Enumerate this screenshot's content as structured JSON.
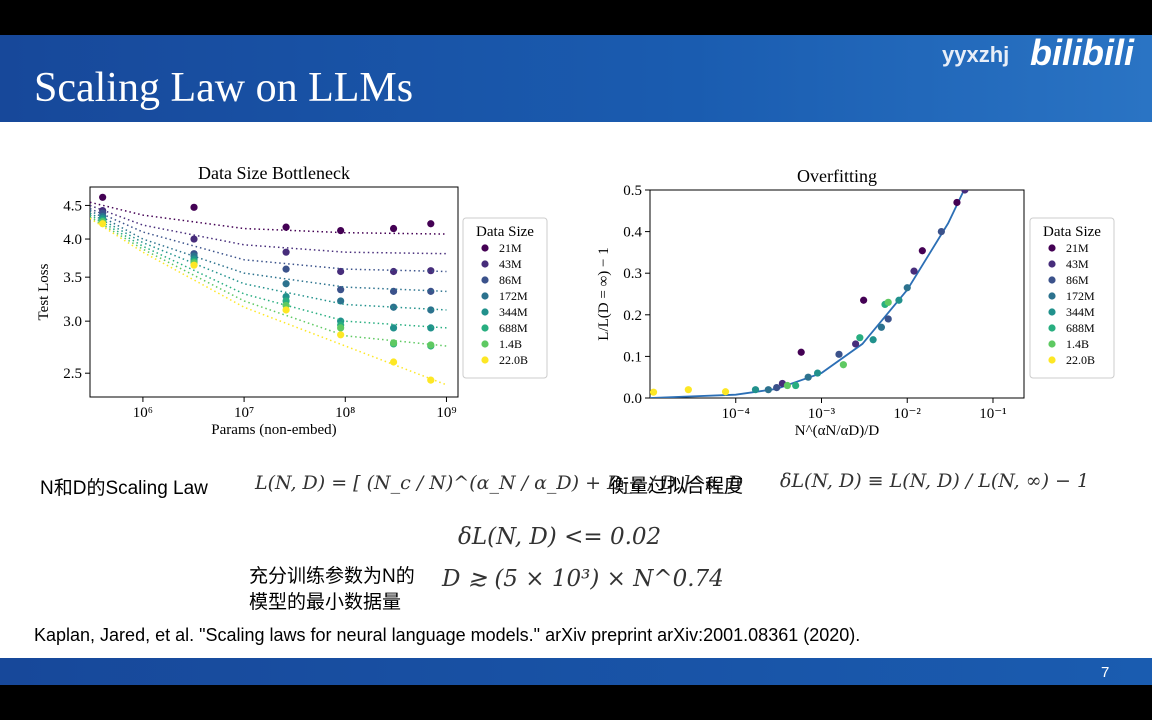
{
  "header": {
    "title": "Scaling Law on LLMs",
    "watermark": "yyxzhj",
    "brand": "bilibili"
  },
  "chart_data": [
    {
      "type": "scatter",
      "title": "Data Size Bottleneck",
      "x_label": "Params (non-embed)",
      "y_label": "Test Loss",
      "xscale": "log",
      "yscale": "log",
      "xlim": [
        300000,
        1300000000
      ],
      "ylim": [
        2.3,
        4.8
      ],
      "xticks": [
        {
          "value": 1000000,
          "label": "10⁶"
        },
        {
          "value": 10000000,
          "label": "10⁷"
        },
        {
          "value": 100000000,
          "label": "10⁸"
        },
        {
          "value": 1000000000,
          "label": "10⁹"
        }
      ],
      "yticks": [
        2.5,
        {
          "value": 3,
          "label": "3.0"
        },
        3.5,
        {
          "value": 4,
          "label": "4.0"
        },
        4.5
      ],
      "legend": "outside right",
      "legend_title": "Data Size",
      "x": [
        400000,
        3200000,
        26000000,
        90000000,
        300000000,
        700000000
      ],
      "fit_x": [
        300000,
        1000000,
        10000000,
        100000000,
        1000000000
      ],
      "series": [
        {
          "name": "21M",
          "color": "#440154",
          "values": [
            4.63,
            4.47,
            4.17,
            4.12,
            4.15,
            4.22
          ],
          "fit": [
            4.55,
            4.35,
            4.15,
            4.09,
            4.07
          ]
        },
        {
          "name": "43M",
          "color": "#472d7b",
          "values": [
            4.42,
            4.0,
            3.82,
            3.57,
            3.57,
            3.58
          ],
          "fit": [
            4.5,
            4.2,
            3.92,
            3.82,
            3.8
          ]
        },
        {
          "name": "86M",
          "color": "#3b528b",
          "values": [
            4.38,
            3.8,
            3.6,
            3.35,
            3.33,
            3.33
          ],
          "fit": [
            4.45,
            4.1,
            3.72,
            3.6,
            3.57
          ]
        },
        {
          "name": "172M",
          "color": "#2c728e",
          "values": [
            4.33,
            3.77,
            3.42,
            3.22,
            3.15,
            3.12
          ],
          "fit": [
            4.42,
            4.0,
            3.55,
            3.38,
            3.33
          ]
        },
        {
          "name": "344M",
          "color": "#21918c",
          "values": [
            4.3,
            3.73,
            3.27,
            3.0,
            2.93,
            2.93
          ],
          "fit": [
            4.38,
            3.95,
            3.42,
            3.18,
            3.12
          ]
        },
        {
          "name": "688M",
          "color": "#28ae80",
          "values": [
            4.27,
            3.7,
            3.22,
            2.96,
            2.77,
            2.75
          ],
          "fit": [
            4.35,
            3.9,
            3.3,
            3.0,
            2.93
          ]
        },
        {
          "name": "1.4B",
          "color": "#5ec962",
          "values": [
            4.25,
            3.68,
            3.17,
            2.93,
            2.78,
            2.76
          ],
          "fit": [
            4.32,
            3.86,
            3.22,
            2.85,
            2.75
          ]
        },
        {
          "name": "22.0B",
          "color": "#fde725",
          "values": [
            4.22,
            3.65,
            3.12,
            2.86,
            2.6,
            2.44
          ],
          "fit": [
            4.3,
            3.82,
            3.15,
            2.75,
            2.4
          ]
        }
      ]
    },
    {
      "type": "scatter",
      "title": "Overfitting",
      "x_label": "N^(αN/αD)/D",
      "y_label": "L/L(D = ∞) − 1",
      "xscale": "log",
      "yscale": "linear",
      "xlim": [
        1e-05,
        0.23
      ],
      "ylim": [
        0,
        0.5
      ],
      "xticks": [
        {
          "value": 0.0001,
          "label": "10⁻⁴"
        },
        {
          "value": 0.001,
          "label": "10⁻³"
        },
        {
          "value": 0.01,
          "label": "10⁻²"
        },
        {
          "value": 0.1,
          "label": "10⁻¹"
        }
      ],
      "yticks": [
        {
          "value": 0,
          "label": "0.0"
        },
        0.1,
        0.2,
        0.3,
        0.4,
        0.5
      ],
      "legend": "outside right",
      "legend_title": "Data Size",
      "fit_x": [
        1e-05,
        0.0001,
        0.0003,
        0.001,
        0.003,
        0.01,
        0.03,
        0.06
      ],
      "fit": [
        0,
        0.008,
        0.022,
        0.06,
        0.13,
        0.26,
        0.42,
        0.55
      ],
      "fit_color": "#2c6fb5",
      "series": [
        {
          "name": "21M",
          "color": "#440154",
          "x": [
            0.00058,
            0.0031,
            0.015,
            0.038
          ],
          "values": [
            0.11,
            0.235,
            0.354,
            0.47
          ]
        },
        {
          "name": "43M",
          "color": "#472d7b",
          "x": [
            0.00035,
            0.0025,
            0.012,
            0.047
          ],
          "values": [
            0.035,
            0.13,
            0.305,
            0.5
          ]
        },
        {
          "name": "86M",
          "color": "#3b528b",
          "x": [
            0.0003,
            0.0016,
            0.006,
            0.025
          ],
          "values": [
            0.025,
            0.105,
            0.19,
            0.4
          ]
        },
        {
          "name": "172M",
          "color": "#2c728e",
          "x": [
            0.00024,
            0.0007,
            0.005,
            0.01
          ],
          "values": [
            0.02,
            0.05,
            0.17,
            0.265
          ]
        },
        {
          "name": "344M",
          "color": "#21918c",
          "x": [
            0.00017,
            0.0009,
            0.004,
            0.008
          ],
          "values": [
            0.02,
            0.06,
            0.14,
            0.235
          ]
        },
        {
          "name": "688M",
          "color": "#28ae80",
          "x": [
            0.0005,
            0.0028,
            0.0055
          ],
          "values": [
            0.03,
            0.145,
            0.225
          ]
        },
        {
          "name": "1.4B",
          "color": "#5ec962",
          "x": [
            0.0004,
            0.0018,
            0.006
          ],
          "values": [
            0.03,
            0.08,
            0.23
          ]
        },
        {
          "name": "22.0B",
          "color": "#fde725",
          "x": [
            1.1e-05,
            2.8e-05,
            7.6e-05
          ],
          "values": [
            0.014,
            0.02,
            0.015
          ]
        }
      ]
    }
  ],
  "text": {
    "law_label": "N和D的Scaling Law",
    "law_formula": "L(N, D) = [ (N_c / N)^(α_N / α_D) + D_c / D ]^α_D",
    "overfit_label": "衡量过拟合程度",
    "overfit_formula": "δL(N, D) ≡ L(N, D) / L(N, ∞) − 1",
    "condition": "δL(N, D) <= 0.02",
    "data_label_1": "充分训练参数为N的",
    "data_label_2": "模型的最小数据量",
    "data_formula": "D ≳ (5 × 10³) × N^0.74",
    "citation": "Kaplan, Jared, et al. \"Scaling laws for neural language models.\" arXiv preprint arXiv:2001.08361 (2020).",
    "page": "7"
  }
}
